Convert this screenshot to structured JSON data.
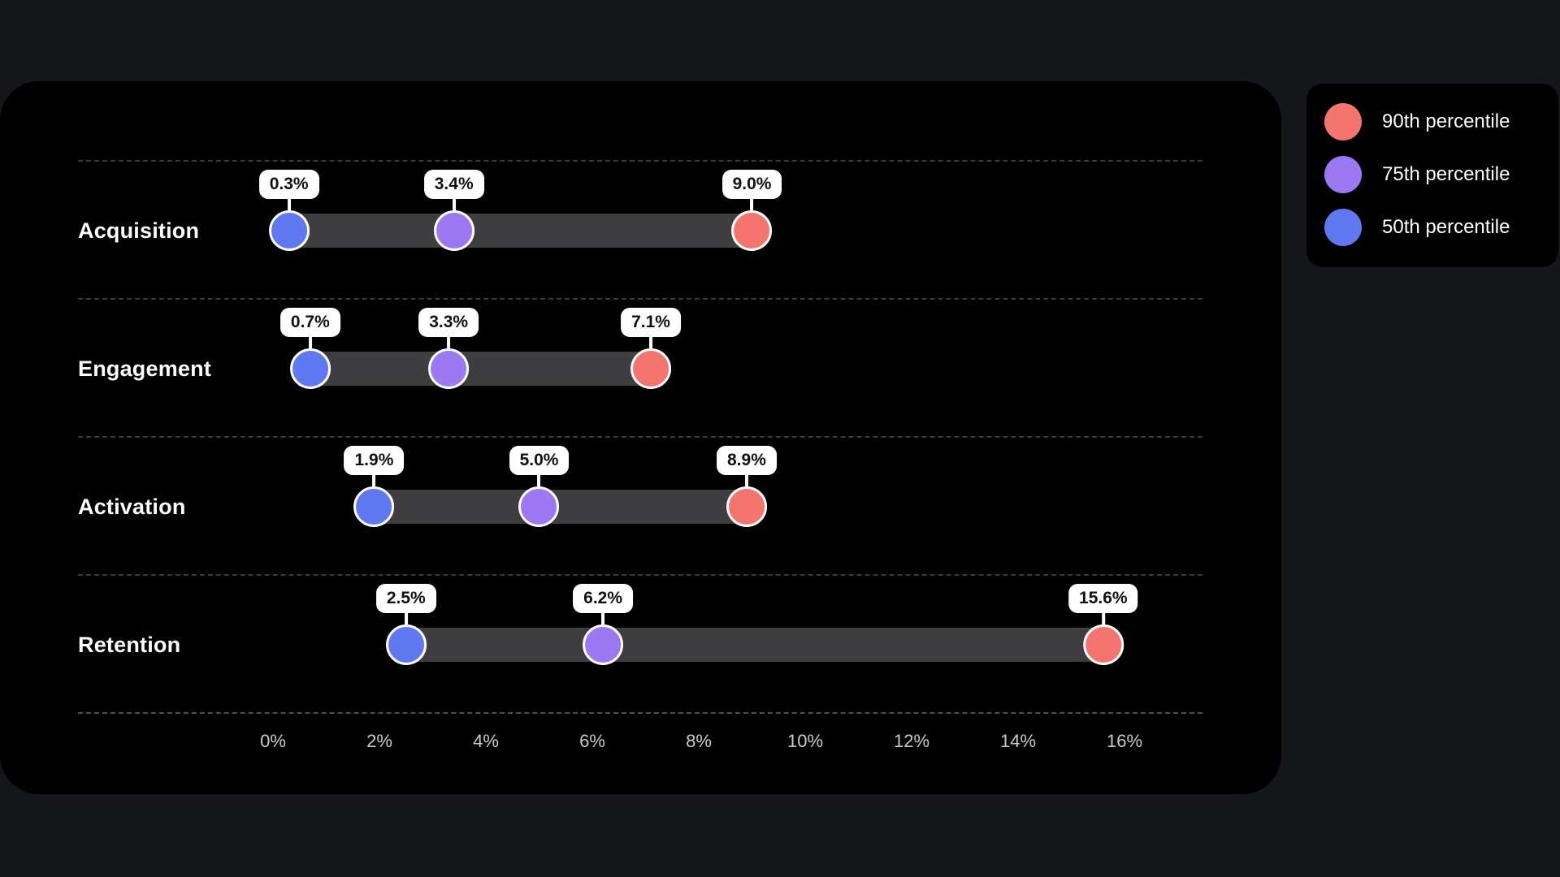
{
  "colors": {
    "page_bg": "#14161a",
    "card_bg": "#000000",
    "range_bar": "#3e3e40",
    "p90": "#f4746e",
    "p75": "#9c78f3",
    "p50": "#6179f0",
    "badge_bg": "#ffffff",
    "badge_text": "#111111",
    "tick_label": "#c9cacc",
    "row_label": "#ffffff"
  },
  "legend": {
    "items": [
      {
        "label": "90th percentile",
        "color": "#f4746e"
      },
      {
        "label": "75th percentile",
        "color": "#9c78f3"
      },
      {
        "label": "50th percentile",
        "color": "#6179f0"
      }
    ]
  },
  "chart_data": {
    "type": "dumbbell-range",
    "title": "",
    "xlabel": "",
    "ylabel": "",
    "categories": [
      "Acquisition",
      "Engagement",
      "Activation",
      "Retention"
    ],
    "series": [
      {
        "name": "50th percentile",
        "color": "#6179f0",
        "values": [
          0.3,
          0.7,
          1.9,
          2.5
        ],
        "labels": [
          "0.3%",
          "0.7%",
          "1.9%",
          "2.5%"
        ]
      },
      {
        "name": "75th percentile",
        "color": "#9c78f3",
        "values": [
          3.4,
          3.3,
          5.0,
          6.2
        ],
        "labels": [
          "3.4%",
          "3.3%",
          "5.0%",
          "6.2%"
        ]
      },
      {
        "name": "90th percentile",
        "color": "#f4746e",
        "values": [
          9.0,
          7.1,
          8.9,
          15.6
        ],
        "labels": [
          "9.0%",
          "7.1%",
          "8.9%",
          "15.6%"
        ]
      }
    ],
    "xlim": [
      0,
      16
    ],
    "x_tick_step": 2,
    "x_ticks": [
      "0%",
      "2%",
      "4%",
      "6%",
      "8%",
      "10%",
      "12%",
      "14%",
      "16%"
    ],
    "grid": "dashed row separators",
    "legend_position": "top-right outside card"
  }
}
